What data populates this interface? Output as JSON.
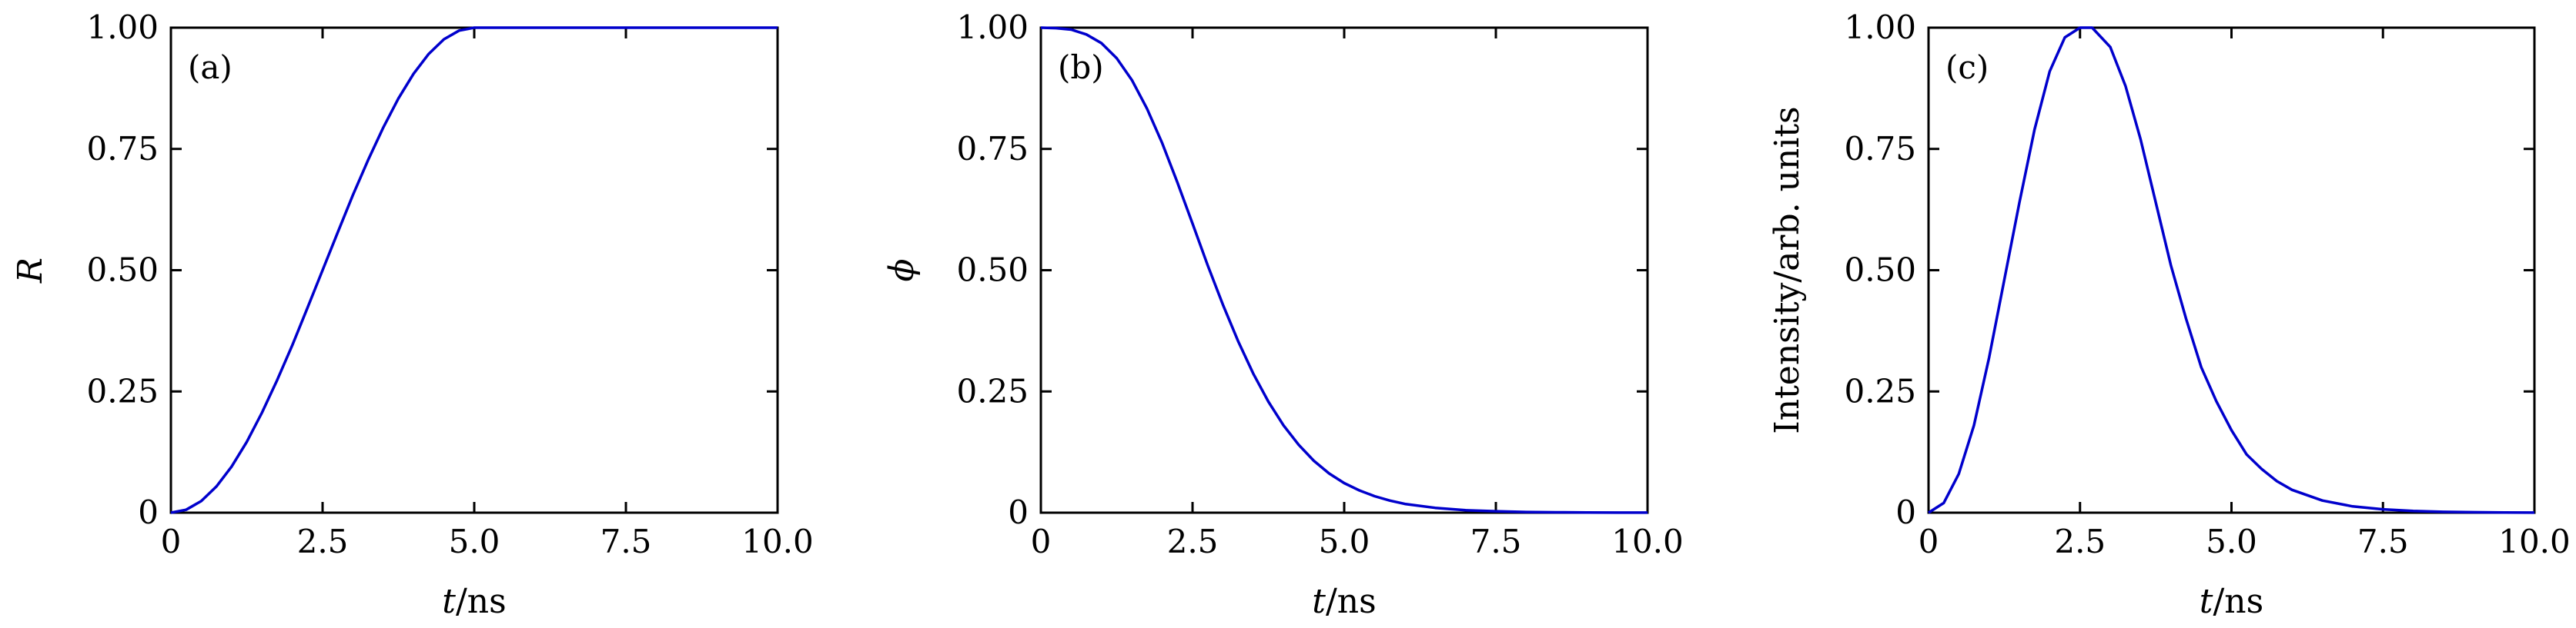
{
  "chart_data": [
    {
      "type": "line",
      "panel_label": "(a)",
      "ylabel": "R",
      "xlabel": {
        "var": "t",
        "unit": "/ns"
      },
      "xlim": [
        0,
        10
      ],
      "ylim": [
        0,
        1
      ],
      "xticks": [
        0,
        2.5,
        5,
        7.5,
        10
      ],
      "xtick_labels": [
        "0",
        "2.5",
        "5.0",
        "7.5",
        "10.0"
      ],
      "yticks": [
        0,
        0.25,
        0.5,
        0.75,
        1
      ],
      "ytick_labels": [
        "0",
        "0.25",
        "0.50",
        "0.75",
        "1.00"
      ],
      "grid": false,
      "series": [
        {
          "color": "#0000cc",
          "x": [
            0,
            0.25,
            0.5,
            0.75,
            1.0,
            1.25,
            1.5,
            1.75,
            2.0,
            2.25,
            2.5,
            2.75,
            3.0,
            3.25,
            3.5,
            3.75,
            4.0,
            4.25,
            4.5,
            4.75,
            5.0,
            5.5,
            6.0,
            7.0,
            8.0,
            9.0,
            10.0
          ],
          "y": [
            0,
            0.006,
            0.024,
            0.054,
            0.095,
            0.146,
            0.206,
            0.273,
            0.345,
            0.422,
            0.5,
            0.578,
            0.655,
            0.727,
            0.794,
            0.854,
            0.905,
            0.946,
            0.976,
            0.994,
            1.0,
            1.0,
            1.0,
            1.0,
            1.0,
            1.0,
            1.0
          ]
        }
      ]
    },
    {
      "type": "line",
      "panel_label": "(b)",
      "ylabel": "ϕ",
      "xlabel": {
        "var": "t",
        "unit": "/ns"
      },
      "xlim": [
        0,
        10
      ],
      "ylim": [
        0,
        1
      ],
      "xticks": [
        0,
        2.5,
        5,
        7.5,
        10
      ],
      "xtick_labels": [
        "0",
        "2.5",
        "5.0",
        "7.5",
        "10.0"
      ],
      "yticks": [
        0,
        0.25,
        0.5,
        0.75,
        1
      ],
      "ytick_labels": [
        "0",
        "0.25",
        "0.50",
        "0.75",
        "1.00"
      ],
      "grid": false,
      "series": [
        {
          "color": "#0000cc",
          "x": [
            0,
            0.25,
            0.5,
            0.75,
            1.0,
            1.25,
            1.5,
            1.75,
            2.0,
            2.25,
            2.5,
            2.75,
            3.0,
            3.25,
            3.5,
            3.75,
            4.0,
            4.25,
            4.5,
            4.75,
            5.0,
            5.25,
            5.5,
            5.75,
            6.0,
            6.5,
            7.0,
            7.5,
            8.0,
            8.5,
            9.0,
            9.5,
            10.0
          ],
          "y": [
            1.0,
            0.999,
            0.996,
            0.986,
            0.968,
            0.937,
            0.892,
            0.833,
            0.762,
            0.681,
            0.596,
            0.51,
            0.429,
            0.354,
            0.287,
            0.229,
            0.18,
            0.14,
            0.107,
            0.081,
            0.061,
            0.046,
            0.034,
            0.025,
            0.018,
            0.01,
            0.005,
            0.003,
            0.0015,
            0.0008,
            0.0004,
            0.0002,
            0.0001
          ]
        }
      ]
    },
    {
      "type": "line",
      "panel_label": "(c)",
      "ylabel": "Intensity/arb. units",
      "xlabel": {
        "var": "t",
        "unit": "/ns"
      },
      "xlim": [
        0,
        10
      ],
      "ylim": [
        0,
        1
      ],
      "xticks": [
        0,
        2.5,
        5,
        7.5,
        10
      ],
      "xtick_labels": [
        "0",
        "2.5",
        "5.0",
        "7.5",
        "10.0"
      ],
      "yticks": [
        0,
        0.25,
        0.5,
        0.75,
        1
      ],
      "ytick_labels": [
        "0",
        "0.25",
        "0.50",
        "0.75",
        "1.00"
      ],
      "grid": false,
      "series": [
        {
          "color": "#0000cc",
          "x": [
            0,
            0.25,
            0.5,
            0.75,
            1.0,
            1.25,
            1.5,
            1.75,
            2.0,
            2.25,
            2.5,
            2.7,
            3.0,
            3.25,
            3.5,
            3.75,
            4.0,
            4.25,
            4.5,
            4.75,
            5.0,
            5.25,
            5.5,
            5.75,
            6.0,
            6.5,
            7.0,
            7.5,
            8.0,
            8.5,
            9.0,
            9.5,
            10.0
          ],
          "y": [
            0,
            0.02,
            0.08,
            0.18,
            0.32,
            0.48,
            0.64,
            0.79,
            0.91,
            0.98,
            1.0,
            1.0,
            0.96,
            0.88,
            0.77,
            0.64,
            0.51,
            0.4,
            0.3,
            0.23,
            0.17,
            0.12,
            0.09,
            0.065,
            0.047,
            0.025,
            0.013,
            0.007,
            0.0035,
            0.0018,
            0.0009,
            0.0004,
            0.0002
          ]
        }
      ]
    }
  ]
}
